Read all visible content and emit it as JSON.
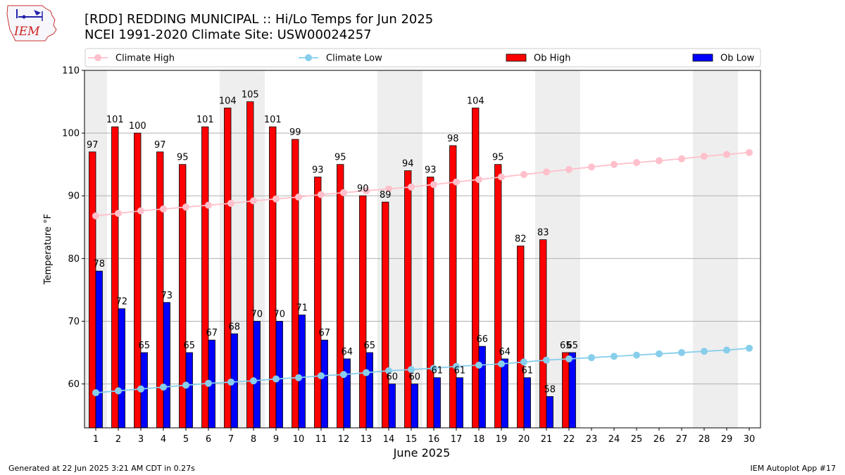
{
  "header": {
    "title_line1": "[RDD] REDDING MUNICIPAL :: Hi/Lo Temps for Jun 2025",
    "title_line2": "NCEI 1991-2020 Climate Site: USW00024257"
  },
  "logo": {
    "text": "IEM"
  },
  "footer": {
    "left": "Generated at 22 Jun 2025 3:21 AM CDT in 0.27s",
    "right": "IEM Autoplot App #17"
  },
  "colors": {
    "ob_high": "#ff0000",
    "ob_low": "#0000ff",
    "climate_high": "#ffc0cb",
    "climate_low": "#87ceeb",
    "weekend_shade": "#eeeeee",
    "grid": "#b0b0b0"
  },
  "chart_data": {
    "type": "bar",
    "xlabel": "June 2025",
    "ylabel": "Temperature °F",
    "ylim": [
      53,
      110
    ],
    "yticks": [
      60,
      70,
      80,
      90,
      100,
      110
    ],
    "grid": "horizontal",
    "legend_position": "top, above plot",
    "days": [
      1,
      2,
      3,
      4,
      5,
      6,
      7,
      8,
      9,
      10,
      11,
      12,
      13,
      14,
      15,
      16,
      17,
      18,
      19,
      20,
      21,
      22,
      23,
      24,
      25,
      26,
      27,
      28,
      29,
      30
    ],
    "weekend_days": [
      1,
      7,
      8,
      14,
      15,
      21,
      22,
      28,
      29
    ],
    "series": [
      {
        "name": "Climate High",
        "kind": "line",
        "values": [
          86.8,
          87.2,
          87.6,
          87.9,
          88.2,
          88.5,
          88.8,
          89.2,
          89.5,
          89.8,
          90.2,
          90.5,
          90.8,
          91.1,
          91.4,
          91.8,
          92.2,
          92.6,
          93.0,
          93.4,
          93.8,
          94.2,
          94.6,
          95.0,
          95.3,
          95.6,
          95.9,
          96.3,
          96.6,
          96.9
        ]
      },
      {
        "name": "Climate Low",
        "kind": "line",
        "values": [
          58.6,
          58.9,
          59.2,
          59.5,
          59.8,
          60.1,
          60.3,
          60.5,
          60.8,
          61.0,
          61.3,
          61.5,
          61.8,
          62.1,
          62.3,
          62.5,
          62.8,
          63.0,
          63.2,
          63.5,
          63.8,
          64.0,
          64.2,
          64.4,
          64.6,
          64.8,
          65.0,
          65.2,
          65.4,
          65.7
        ]
      },
      {
        "name": "Ob High",
        "kind": "bar",
        "values": [
          97,
          101,
          100,
          97,
          95,
          101,
          104,
          105,
          101,
          99,
          93,
          95,
          90,
          89,
          94,
          93,
          98,
          104,
          95,
          82,
          83,
          65
        ]
      },
      {
        "name": "Ob Low",
        "kind": "bar",
        "values": [
          78,
          72,
          65,
          73,
          65,
          67,
          68,
          70,
          70,
          71,
          67,
          64,
          65,
          60,
          60,
          61,
          61,
          66,
          64,
          61,
          58,
          65
        ]
      }
    ]
  }
}
